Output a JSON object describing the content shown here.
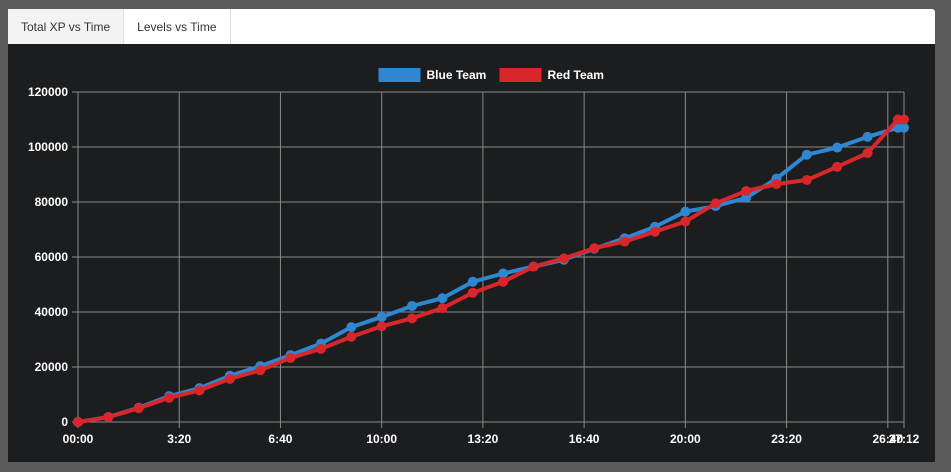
{
  "tabs": [
    {
      "label": "Total XP vs Time"
    },
    {
      "label": "Levels vs Time"
    }
  ],
  "chart_data": {
    "type": "line",
    "title": "",
    "xlabel": "",
    "ylabel": "",
    "ylim": [
      0,
      120000
    ],
    "xlim": [
      "00:00",
      "27:12"
    ],
    "grid": true,
    "legend": "top-center",
    "y_ticks": [
      "0",
      "20000",
      "40000",
      "60000",
      "80000",
      "100000",
      "120000"
    ],
    "x_ticks": [
      "00:00",
      "3:20",
      "6:40",
      "10:00",
      "13:20",
      "16:40",
      "20:00",
      "23:20",
      "26:40",
      "27:12"
    ],
    "x": [
      "00:00",
      "1:00",
      "2:00",
      "3:00",
      "4:00",
      "5:00",
      "6:00",
      "7:00",
      "8:00",
      "9:00",
      "10:00",
      "11:00",
      "12:00",
      "13:00",
      "14:00",
      "15:00",
      "16:00",
      "17:00",
      "18:00",
      "19:00",
      "20:00",
      "21:00",
      "22:00",
      "23:00",
      "24:00",
      "25:00",
      "26:00",
      "27:00",
      "27:12"
    ],
    "series": [
      {
        "name": "Blue Team",
        "color": "#2f86d1",
        "values": [
          0,
          1800,
          5200,
          9400,
          12300,
          16800,
          20300,
          24300,
          28500,
          34500,
          38200,
          42200,
          45000,
          51000,
          54000,
          56500,
          59000,
          63000,
          66800,
          71000,
          76500,
          78500,
          81500,
          88500,
          97200,
          99800,
          103700,
          107000,
          107000
        ]
      },
      {
        "name": "Red Team",
        "color": "#d9262a",
        "values": [
          0,
          1800,
          5000,
          8800,
          11500,
          15700,
          18800,
          23300,
          26600,
          31000,
          34800,
          37700,
          41400,
          47000,
          51000,
          56500,
          59500,
          63200,
          65600,
          69200,
          72900,
          79500,
          84000,
          86500,
          88000,
          92800,
          97800,
          110000,
          110000
        ]
      }
    ]
  }
}
